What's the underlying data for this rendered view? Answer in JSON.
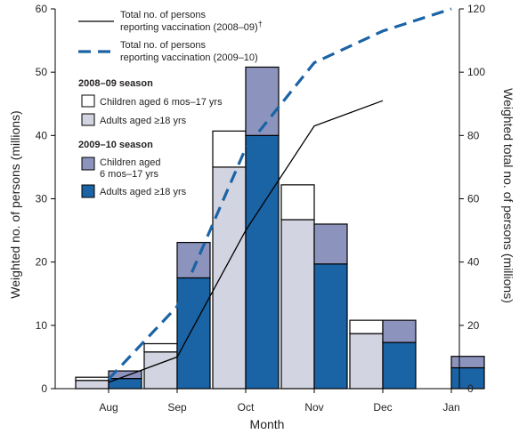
{
  "chart_data": {
    "type": "bar",
    "xlabel": "Month",
    "ylabel": "Weighted no. of persons (millions)",
    "y2label": "Weighted total no. of persons (millions)",
    "categories": [
      "Aug",
      "Sep",
      "Oct",
      "Nov",
      "Dec",
      "Jan"
    ],
    "ylim": [
      0,
      60
    ],
    "y2lim": [
      0,
      120
    ],
    "yticks": [
      "0",
      "10",
      "20",
      "30",
      "40",
      "50",
      "60"
    ],
    "y2ticks": [
      "0",
      "20",
      "40",
      "60",
      "80",
      "100",
      "120"
    ],
    "bar_series": [
      {
        "name": "Children aged 6 mos–17 yrs",
        "season": "2008–09 season",
        "stack": "2008-09",
        "color": "#ffffff",
        "values": [
          0.5,
          1.3,
          5.7,
          5.5,
          2.1,
          null
        ]
      },
      {
        "name": "Adults aged ≥18 yrs",
        "season": "2008–09 season",
        "stack": "2008-09",
        "color": "#d3d4e1",
        "values": [
          1.3,
          5.8,
          35.0,
          26.7,
          8.7,
          null
        ]
      },
      {
        "name": "Children aged 6 mos–17 yrs",
        "season": "2009–10 season",
        "stack": "2009-10",
        "color": "#8c94bd",
        "values": [
          1.2,
          5.6,
          10.8,
          6.3,
          3.5,
          1.8
        ]
      },
      {
        "name": "Adults aged ≥18 yrs",
        "season": "2009–10 season",
        "stack": "2009-10",
        "color": "#1a63a5",
        "values": [
          1.6,
          17.5,
          40.0,
          19.7,
          7.3,
          3.3
        ]
      }
    ],
    "line_series": [
      {
        "name": "Total no. of persons reporting vaccination (2008–09)",
        "name_suffix": "†",
        "style": "solid",
        "color": "#000000",
        "x": [
          0.0,
          1.0,
          2.0,
          3.0,
          4.0
        ],
        "values": [
          2,
          10,
          50,
          83,
          91
        ]
      },
      {
        "name": "Total no. of persons reporting vaccination (2009–10)",
        "style": "dashed",
        "color": "#1a63a5",
        "x": [
          0.0,
          1.0,
          2.0,
          3.0,
          4.0,
          5.0
        ],
        "values": [
          3,
          26,
          76,
          103,
          113,
          120
        ]
      }
    ],
    "legend": {
      "placement": "top-left",
      "line_entries": [
        {
          "line1": "Total no. of persons",
          "line2": "reporting vaccination (2008–09)",
          "suffix": "†"
        },
        {
          "line1": "Total no. of persons",
          "line2": "reporting vaccination (2009–10)"
        }
      ],
      "groups": [
        {
          "title": "2008–09 season",
          "entries": [
            {
              "label": "Children aged 6 mos–17 yrs",
              "color": "#ffffff"
            },
            {
              "label": "Adults aged ≥18 yrs",
              "color": "#d3d4e1"
            }
          ]
        },
        {
          "title": "2009–10 season",
          "entries": [
            {
              "label": "Children aged",
              "label2": "6 mos–17 yrs",
              "color": "#8c94bd"
            },
            {
              "label": "Adults aged ≥18 yrs",
              "color": "#1a63a5"
            }
          ]
        }
      ]
    },
    "grid": false
  }
}
